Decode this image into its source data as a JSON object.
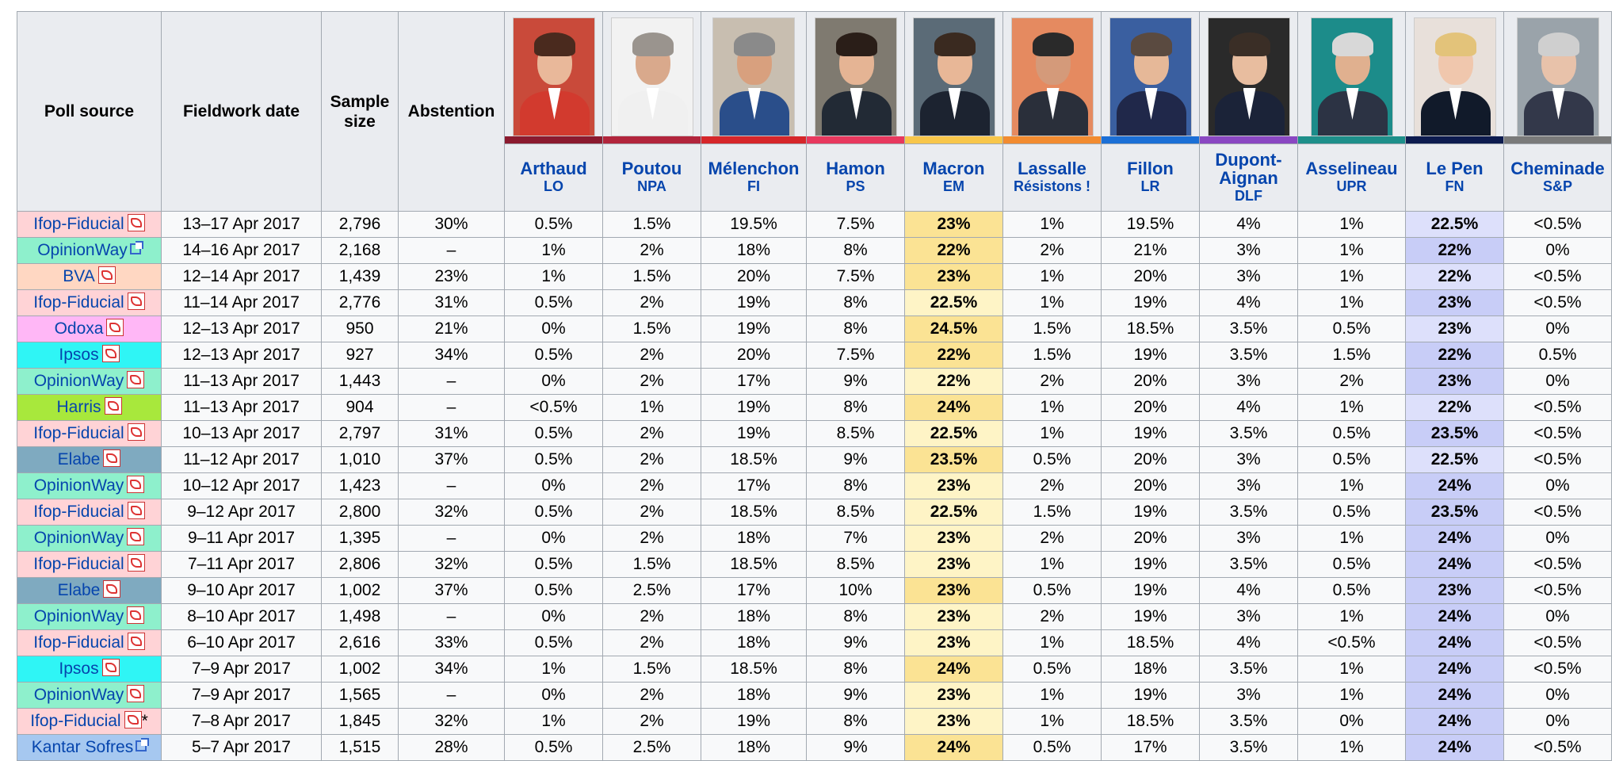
{
  "headers": {
    "poll_source": "Poll source",
    "fieldwork_date": "Fieldwork date",
    "sample_size": "Sample size",
    "abstention": "Abstention"
  },
  "candidates": [
    {
      "name": "Arthaud",
      "party": "LO",
      "color": "#8b1a2f"
    },
    {
      "name": "Poutou",
      "party": "NPA",
      "color": "#b2253c"
    },
    {
      "name": "Mélenchon",
      "party": "FI",
      "color": "#d6262a"
    },
    {
      "name": "Hamon",
      "party": "PS",
      "color": "#e8385e"
    },
    {
      "name": "Macron",
      "party": "EM",
      "color": "#f8c64a"
    },
    {
      "name": "Lassalle",
      "party": "Résistons !",
      "color": "#f28b30"
    },
    {
      "name": "Fillon",
      "party": "LR",
      "color": "#1b6fd6"
    },
    {
      "name": "Dupont-Aignan",
      "party": "DLF",
      "color": "#8a47c2"
    },
    {
      "name": "Asselineau",
      "party": "UPR",
      "color": "#1e8f8a"
    },
    {
      "name": "Le Pen",
      "party": "FN",
      "color": "#0d1b4f"
    },
    {
      "name": "Cheminade",
      "party": "S&P",
      "color": "#7a7a7a"
    }
  ],
  "sources": {
    "ifop": {
      "label": "Ifop-Fiducial",
      "color": "#ffd3d6"
    },
    "opinionway": {
      "label": "OpinionWay",
      "color": "#8ef0cc"
    },
    "bva": {
      "label": "BVA",
      "color": "#ffd7c2"
    },
    "odoxa": {
      "label": "Odoxa",
      "color": "#ffb7f6"
    },
    "ipsos": {
      "label": "Ipsos",
      "color": "#2ff5f5"
    },
    "harris": {
      "label": "Harris",
      "color": "#a8e83c"
    },
    "elabe": {
      "label": "Elabe",
      "color": "#7faac0"
    },
    "kantar": {
      "label": "Kantar Sofres",
      "color": "#a6c8f0"
    }
  },
  "rows": [
    {
      "src": "ifop",
      "icon": "pdf",
      "date": "13–17 Apr 2017",
      "size": "2,796",
      "abst": "30%",
      "v": [
        "0.5%",
        "1.5%",
        "19.5%",
        "7.5%",
        "23%",
        "1%",
        "19.5%",
        "4%",
        "1%",
        "22.5%",
        "<0.5%"
      ],
      "mac": "win",
      "lp": "light"
    },
    {
      "src": "opinionway",
      "icon": "ext",
      "date": "14–16 Apr 2017",
      "size": "2,168",
      "abst": "–",
      "v": [
        "1%",
        "2%",
        "18%",
        "8%",
        "22%",
        "2%",
        "21%",
        "3%",
        "1%",
        "22%",
        "0%"
      ],
      "mac": "win",
      "lp": "dark"
    },
    {
      "src": "bva",
      "icon": "pdf",
      "date": "12–14 Apr 2017",
      "size": "1,439",
      "abst": "23%",
      "v": [
        "1%",
        "1.5%",
        "20%",
        "7.5%",
        "23%",
        "1%",
        "20%",
        "3%",
        "1%",
        "22%",
        "<0.5%"
      ],
      "mac": "win",
      "lp": "light"
    },
    {
      "src": "ifop",
      "icon": "pdf",
      "date": "11–14 Apr 2017",
      "size": "2,776",
      "abst": "31%",
      "v": [
        "0.5%",
        "2%",
        "19%",
        "8%",
        "22.5%",
        "1%",
        "19%",
        "4%",
        "1%",
        "23%",
        "<0.5%"
      ],
      "mac": "lite",
      "lp": "dark"
    },
    {
      "src": "odoxa",
      "icon": "pdf",
      "date": "12–13 Apr 2017",
      "size": "950",
      "abst": "21%",
      "v": [
        "0%",
        "1.5%",
        "19%",
        "8%",
        "24.5%",
        "1.5%",
        "18.5%",
        "3.5%",
        "0.5%",
        "23%",
        "0%"
      ],
      "mac": "win",
      "lp": "light"
    },
    {
      "src": "ipsos",
      "icon": "pdf",
      "date": "12–13 Apr 2017",
      "size": "927",
      "abst": "34%",
      "v": [
        "0.5%",
        "2%",
        "20%",
        "7.5%",
        "22%",
        "1.5%",
        "19%",
        "3.5%",
        "1.5%",
        "22%",
        "0.5%"
      ],
      "mac": "win",
      "lp": "dark"
    },
    {
      "src": "opinionway",
      "icon": "pdf",
      "date": "11–13 Apr 2017",
      "size": "1,443",
      "abst": "–",
      "v": [
        "0%",
        "2%",
        "17%",
        "9%",
        "22%",
        "2%",
        "20%",
        "3%",
        "2%",
        "23%",
        "0%"
      ],
      "mac": "lite",
      "lp": "dark"
    },
    {
      "src": "harris",
      "icon": "pdf",
      "date": "11–13 Apr 2017",
      "size": "904",
      "abst": "–",
      "v": [
        "<0.5%",
        "1%",
        "19%",
        "8%",
        "24%",
        "1%",
        "20%",
        "4%",
        "1%",
        "22%",
        "<0.5%"
      ],
      "mac": "win",
      "lp": "light"
    },
    {
      "src": "ifop",
      "icon": "pdf",
      "date": "10–13 Apr 2017",
      "size": "2,797",
      "abst": "31%",
      "v": [
        "0.5%",
        "2%",
        "19%",
        "8.5%",
        "22.5%",
        "1%",
        "19%",
        "3.5%",
        "0.5%",
        "23.5%",
        "<0.5%"
      ],
      "mac": "lite",
      "lp": "dark"
    },
    {
      "src": "elabe",
      "icon": "pdf",
      "date": "11–12 Apr 2017",
      "size": "1,010",
      "abst": "37%",
      "v": [
        "0.5%",
        "2%",
        "18.5%",
        "9%",
        "23.5%",
        "0.5%",
        "20%",
        "3%",
        "0.5%",
        "22.5%",
        "<0.5%"
      ],
      "mac": "win",
      "lp": "light"
    },
    {
      "src": "opinionway",
      "icon": "pdf",
      "date": "10–12 Apr 2017",
      "size": "1,423",
      "abst": "–",
      "v": [
        "0%",
        "2%",
        "17%",
        "8%",
        "23%",
        "2%",
        "20%",
        "3%",
        "1%",
        "24%",
        "0%"
      ],
      "mac": "lite",
      "lp": "dark"
    },
    {
      "src": "ifop",
      "icon": "pdf",
      "date": "9–12 Apr 2017",
      "size": "2,800",
      "abst": "32%",
      "v": [
        "0.5%",
        "2%",
        "18.5%",
        "8.5%",
        "22.5%",
        "1.5%",
        "19%",
        "3.5%",
        "0.5%",
        "23.5%",
        "<0.5%"
      ],
      "mac": "lite",
      "lp": "dark"
    },
    {
      "src": "opinionway",
      "icon": "pdf",
      "date": "9–11 Apr 2017",
      "size": "1,395",
      "abst": "–",
      "v": [
        "0%",
        "2%",
        "18%",
        "7%",
        "23%",
        "2%",
        "20%",
        "3%",
        "1%",
        "24%",
        "0%"
      ],
      "mac": "lite",
      "lp": "dark"
    },
    {
      "src": "ifop",
      "icon": "pdf",
      "date": "7–11 Apr 2017",
      "size": "2,806",
      "abst": "32%",
      "v": [
        "0.5%",
        "1.5%",
        "18.5%",
        "8.5%",
        "23%",
        "1%",
        "19%",
        "3.5%",
        "0.5%",
        "24%",
        "<0.5%"
      ],
      "mac": "lite",
      "lp": "dark"
    },
    {
      "src": "elabe",
      "icon": "pdf",
      "date": "9–10 Apr 2017",
      "size": "1,002",
      "abst": "37%",
      "v": [
        "0.5%",
        "2.5%",
        "17%",
        "10%",
        "23%",
        "0.5%",
        "19%",
        "4%",
        "0.5%",
        "23%",
        "<0.5%"
      ],
      "mac": "win",
      "lp": "dark"
    },
    {
      "src": "opinionway",
      "icon": "pdf",
      "date": "8–10 Apr 2017",
      "size": "1,498",
      "abst": "–",
      "v": [
        "0%",
        "2%",
        "18%",
        "8%",
        "23%",
        "2%",
        "19%",
        "3%",
        "1%",
        "24%",
        "0%"
      ],
      "mac": "lite",
      "lp": "dark"
    },
    {
      "src": "ifop",
      "icon": "pdf",
      "date": "6–10 Apr 2017",
      "size": "2,616",
      "abst": "33%",
      "v": [
        "0.5%",
        "2%",
        "18%",
        "9%",
        "23%",
        "1%",
        "18.5%",
        "4%",
        "<0.5%",
        "24%",
        "<0.5%"
      ],
      "mac": "lite",
      "lp": "dark"
    },
    {
      "src": "ipsos",
      "icon": "pdf",
      "date": "7–9 Apr 2017",
      "size": "1,002",
      "abst": "34%",
      "v": [
        "1%",
        "1.5%",
        "18.5%",
        "8%",
        "24%",
        "0.5%",
        "18%",
        "3.5%",
        "1%",
        "24%",
        "<0.5%"
      ],
      "mac": "win",
      "lp": "dark"
    },
    {
      "src": "opinionway",
      "icon": "pdf",
      "date": "7–9 Apr 2017",
      "size": "1,565",
      "abst": "–",
      "v": [
        "0%",
        "2%",
        "18%",
        "9%",
        "23%",
        "1%",
        "19%",
        "3%",
        "1%",
        "24%",
        "0%"
      ],
      "mac": "lite",
      "lp": "dark"
    },
    {
      "src": "ifop",
      "icon": "pdf",
      "note": "*",
      "date": "7–8 Apr 2017",
      "size": "1,845",
      "abst": "32%",
      "v": [
        "1%",
        "2%",
        "19%",
        "8%",
        "23%",
        "1%",
        "18.5%",
        "3.5%",
        "0%",
        "24%",
        "0%"
      ],
      "mac": "lite",
      "lp": "dark"
    },
    {
      "src": "kantar",
      "icon": "ext",
      "date": "5–7 Apr 2017",
      "size": "1,515",
      "abst": "28%",
      "v": [
        "0.5%",
        "2.5%",
        "18%",
        "9%",
        "24%",
        "0.5%",
        "17%",
        "3.5%",
        "1%",
        "24%",
        "<0.5%"
      ],
      "mac": "win",
      "lp": "dark"
    }
  ]
}
